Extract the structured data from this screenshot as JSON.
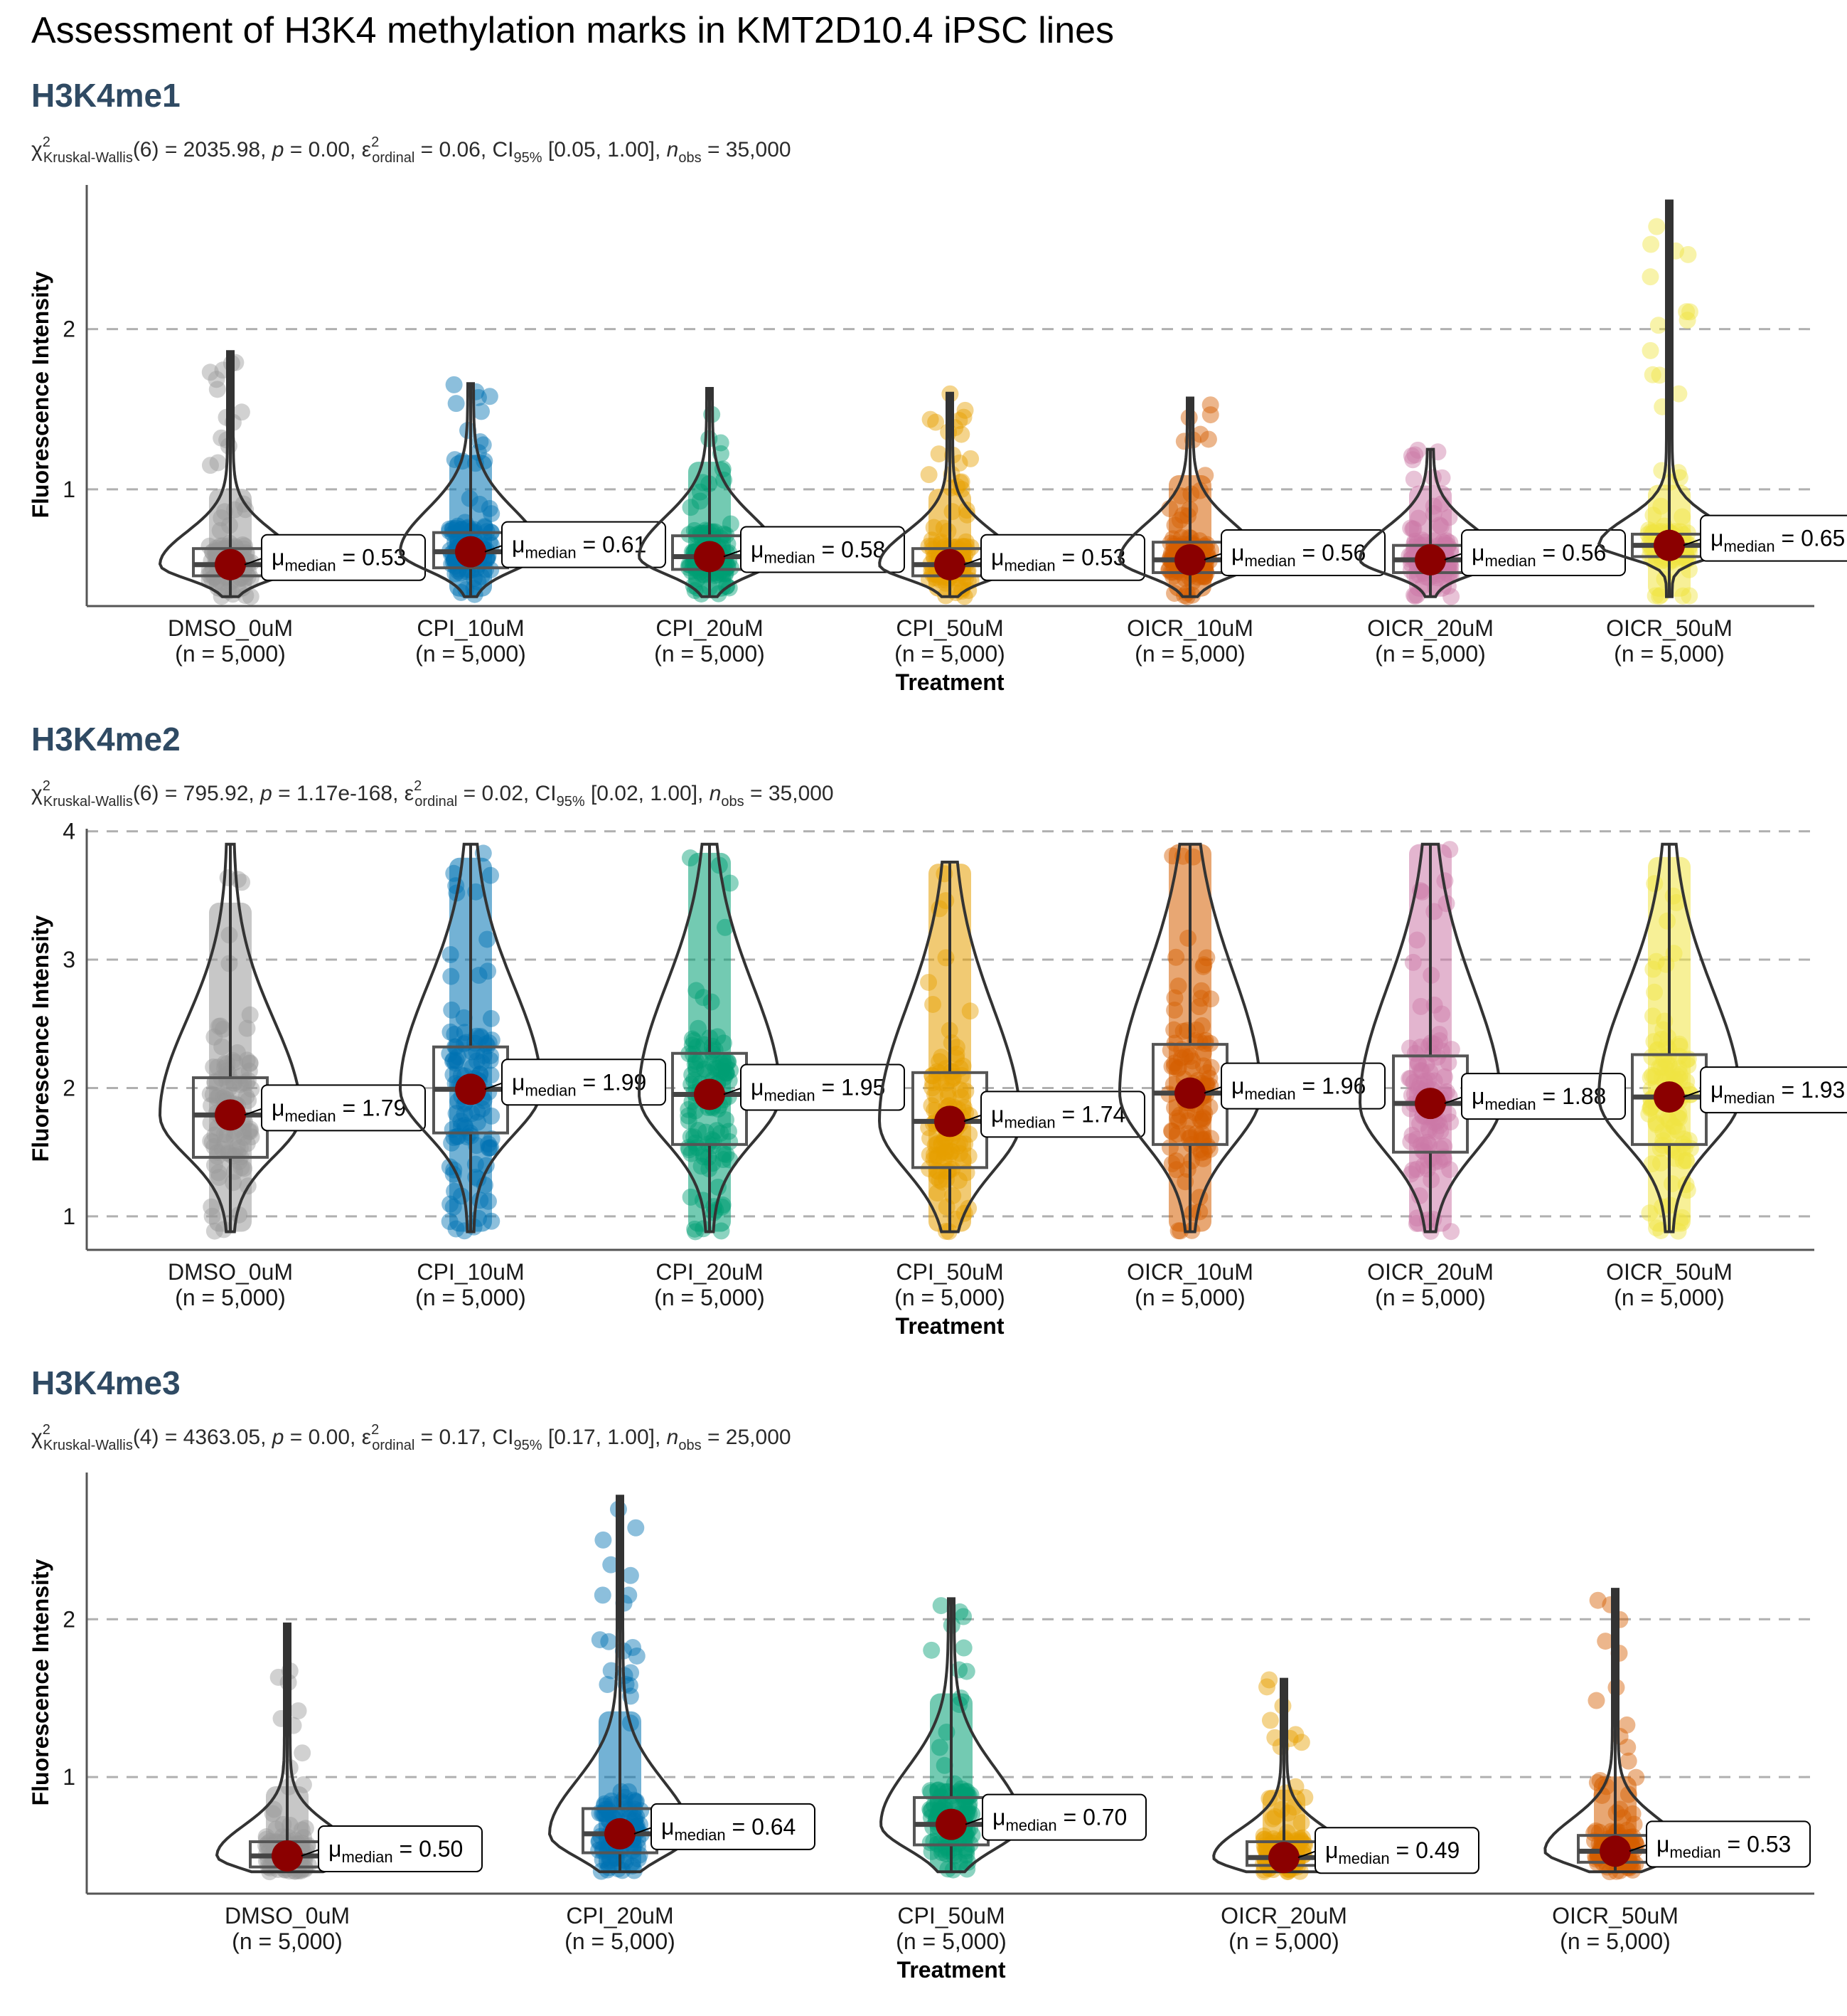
{
  "title": "Assessment of H3K4 methylation marks in KMT2D10.4 iPSC lines",
  "median_label": {
    "mu": "μ",
    "sub": "median",
    "eq": " = "
  },
  "chart_data": [
    {
      "type": "violin",
      "title": "H3K4me1",
      "stat_parts": {
        "chi": "χ",
        "kw": "Kruskal-Wallis",
        "df": "(6) = 2035.98, ",
        "p_label": "p",
        "p_val": " = 0.00, ",
        "eps": "ε",
        "ord": "ordinal",
        "eps_val": " = 0.06, CI",
        "ci_sub": "95%",
        "ci_val": " [0.05, 1.00], ",
        "n_label": "n",
        "n_sub": "obs",
        "n_val": " = 35,000"
      },
      "xlabel": "Treatment",
      "ylabel": "Fluorescence Intensity",
      "ylim": [
        0.28,
        2.9
      ],
      "yticks": [
        1,
        2
      ],
      "grid": "horizontal dashed at major ticks",
      "categories": [
        "DMSO_0uM",
        "CPI_10uM",
        "CPI_20uM",
        "CPI_50uM",
        "OICR_10uM",
        "OICR_20uM",
        "OICR_50uM"
      ],
      "n_labels": [
        "(n = 5,000)",
        "(n = 5,000)",
        "(n = 5,000)",
        "(n = 5,000)",
        "(n = 5,000)",
        "(n = 5,000)",
        "(n = 5,000)"
      ],
      "colors": [
        "#999999",
        "#0072B2",
        "#009E73",
        "#E69F00",
        "#D55E00",
        "#CC79A7",
        "#F0E442"
      ],
      "medians": [
        0.53,
        0.61,
        0.58,
        0.53,
        0.56,
        0.56,
        0.65
      ],
      "median_labels": [
        "0.53",
        "0.61",
        "0.58",
        "0.53",
        "0.56",
        "0.56",
        "0.65"
      ],
      "q1": [
        0.46,
        0.51,
        0.5,
        0.46,
        0.48,
        0.48,
        0.58
      ],
      "q3": [
        0.63,
        0.73,
        0.71,
        0.63,
        0.67,
        0.65,
        0.72
      ],
      "mins": [
        0.33,
        0.33,
        0.33,
        0.33,
        0.33,
        0.33,
        0.33
      ],
      "maxs": [
        1.86,
        1.66,
        1.63,
        1.6,
        1.57,
        1.25,
        2.8
      ]
    },
    {
      "type": "violin",
      "title": "H3K4me2",
      "stat_parts": {
        "chi": "χ",
        "kw": "Kruskal-Wallis",
        "df": "(6) = 795.92, ",
        "p_label": "p",
        "p_val": " = 1.17e-168, ",
        "eps": "ε",
        "ord": "ordinal",
        "eps_val": " = 0.02, CI",
        "ci_sub": "95%",
        "ci_val": " [0.02, 1.00], ",
        "n_label": "n",
        "n_sub": "obs",
        "n_val": " = 35,000"
      },
      "xlabel": "Treatment",
      "ylabel": "Fluorescence Intensity",
      "ylim": [
        0.75,
        4.02
      ],
      "yticks": [
        1,
        2,
        3,
        4
      ],
      "grid": "horizontal dashed at major ticks",
      "categories": [
        "DMSO_0uM",
        "CPI_10uM",
        "CPI_20uM",
        "CPI_50uM",
        "OICR_10uM",
        "OICR_20uM",
        "OICR_50uM"
      ],
      "n_labels": [
        "(n = 5,000)",
        "(n = 5,000)",
        "(n = 5,000)",
        "(n = 5,000)",
        "(n = 5,000)",
        "(n = 5,000)",
        "(n = 5,000)"
      ],
      "colors": [
        "#999999",
        "#0072B2",
        "#009E73",
        "#E69F00",
        "#D55E00",
        "#CC79A7",
        "#F0E442"
      ],
      "medians": [
        1.79,
        1.99,
        1.95,
        1.74,
        1.96,
        1.88,
        1.93
      ],
      "median_labels": [
        "1.79",
        "1.99",
        "1.95",
        "1.74",
        "1.96",
        "1.88",
        "1.93"
      ],
      "q1": [
        1.46,
        1.65,
        1.56,
        1.38,
        1.56,
        1.5,
        1.56
      ],
      "q3": [
        2.08,
        2.32,
        2.27,
        2.12,
        2.34,
        2.25,
        2.26
      ],
      "mins": [
        0.88,
        0.88,
        0.88,
        0.88,
        0.88,
        0.88,
        0.88
      ],
      "maxs": [
        3.9,
        3.9,
        3.9,
        3.76,
        3.9,
        3.9,
        3.9
      ]
    },
    {
      "type": "violin",
      "title": "H3K4me3",
      "stat_parts": {
        "chi": "χ",
        "kw": "Kruskal-Wallis",
        "df": "(4) = 4363.05, ",
        "p_label": "p",
        "p_val": " = 0.00, ",
        "eps": "ε",
        "ord": "ordinal",
        "eps_val": " = 0.17, CI",
        "ci_sub": "95%",
        "ci_val": " [0.17, 1.00], ",
        "n_label": "n",
        "n_sub": "obs",
        "n_val": " = 25,000"
      },
      "xlabel": "Treatment",
      "ylabel": "Fluorescence Intensity",
      "ylim": [
        0.27,
        2.93
      ],
      "yticks": [
        1,
        2
      ],
      "grid": "horizontal dashed at major ticks",
      "categories": [
        "DMSO_0uM",
        "CPI_20uM",
        "CPI_50uM",
        "OICR_20uM",
        "OICR_50uM"
      ],
      "n_labels": [
        "(n = 5,000)",
        "(n = 5,000)",
        "(n = 5,000)",
        "(n = 5,000)",
        "(n = 5,000)"
      ],
      "colors": [
        "#999999",
        "#0072B2",
        "#009E73",
        "#E69F00",
        "#D55E00"
      ],
      "medians": [
        0.5,
        0.64,
        0.7,
        0.49,
        0.53
      ],
      "median_labels": [
        "0.50",
        "0.64",
        "0.70",
        "0.49",
        "0.53"
      ],
      "q1": [
        0.43,
        0.52,
        0.57,
        0.44,
        0.46
      ],
      "q3": [
        0.59,
        0.8,
        0.87,
        0.59,
        0.63
      ],
      "mins": [
        0.4,
        0.4,
        0.4,
        0.4,
        0.4
      ],
      "maxs": [
        1.97,
        2.78,
        2.13,
        1.62,
        2.19
      ]
    }
  ]
}
